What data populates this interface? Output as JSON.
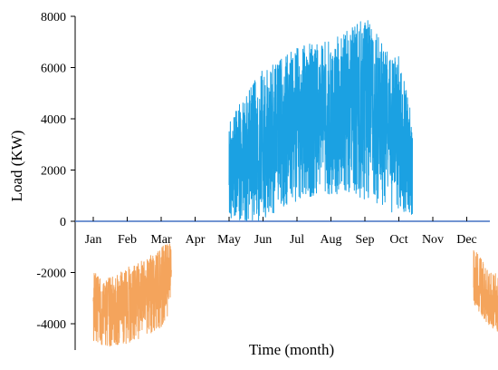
{
  "chart_data": {
    "type": "line",
    "title": "",
    "xlabel": "Time (month)",
    "ylabel": "Load (KW)",
    "ylim": [
      -5000,
      8000
    ],
    "yticks": [
      -4000,
      -2000,
      0,
      2000,
      4000,
      6000,
      8000
    ],
    "ytick_labels": [
      "-4000",
      "-2000",
      "0",
      "2000",
      "4000",
      "6000",
      "8000"
    ],
    "xlim": [
      0,
      12.15
    ],
    "months": [
      "Jan",
      "Feb",
      "Mar",
      "Apr",
      "May",
      "Jun",
      "Jul",
      "Aug",
      "Sep",
      "Oct",
      "Nov",
      "Dec"
    ],
    "grid": false,
    "legend": "none",
    "series": [
      {
        "color": "#1BA1E2",
        "line_color": "#4472C4",
        "period": [
          "May",
          "Sep"
        ],
        "x": [
          4.0,
          4.5,
          5.0,
          5.5,
          6.0,
          6.5,
          7.0,
          7.5,
          8.0,
          8.5,
          9.0,
          9.4
        ],
        "envelope_max": [
          4000,
          5000,
          6000,
          6300,
          6800,
          7000,
          7000,
          7500,
          8000,
          7000,
          6500,
          4200
        ],
        "envelope_min": [
          0,
          0,
          0,
          500,
          800,
          1000,
          1000,
          1000,
          800,
          600,
          100,
          0
        ],
        "typical": [
          2000,
          2500,
          3000,
          3500,
          4000,
          4300,
          4200,
          4400,
          4500,
          4000,
          3300,
          2000
        ]
      },
      {
        "color": "#F4A45C",
        "period": [
          "Jan",
          "Mar"
        ],
        "x": [
          0.0,
          0.5,
          1.0,
          1.5,
          2.0,
          2.3
        ],
        "envelope_max": [
          -2000,
          -2200,
          -1800,
          -1500,
          -1000,
          -800
        ],
        "envelope_min": [
          -4800,
          -4900,
          -4800,
          -4500,
          -4200,
          -3500
        ],
        "typical": [
          -3200,
          -3500,
          -3200,
          -2800,
          -2400,
          -2000
        ]
      },
      {
        "color": "#F4A45C",
        "period": [
          "Nov",
          "Dec"
        ],
        "x": [
          11.2,
          11.6,
          12.0
        ],
        "envelope_max": [
          -1000,
          -1800,
          -2200
        ],
        "envelope_min": [
          -3200,
          -4000,
          -4400
        ],
        "typical": [
          -2300,
          -2900,
          -3300
        ]
      }
    ]
  }
}
